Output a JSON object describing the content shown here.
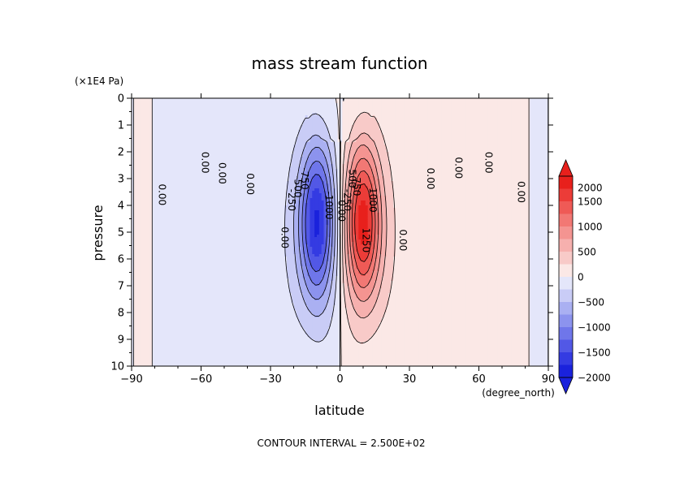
{
  "chart_data": {
    "type": "heatmap",
    "title": "mass stream function",
    "xlabel": "latitude",
    "ylabel": "pressure",
    "x_unit": "(degree_north)",
    "y_unit": "(×1E4 Pa)",
    "xlim": [
      -90,
      90
    ],
    "ylim": [
      0,
      10
    ],
    "y_reversed": true,
    "x_ticks": [
      "−90",
      "−60",
      "−30",
      "0",
      "30",
      "60",
      "90"
    ],
    "x_tick_values": [
      -90,
      -60,
      -30,
      0,
      30,
      60,
      90
    ],
    "y_ticks": [
      "0",
      "1",
      "2",
      "3",
      "4",
      "5",
      "6",
      "7",
      "8",
      "9",
      "10"
    ],
    "y_tick_values": [
      0,
      1,
      2,
      3,
      4,
      5,
      6,
      7,
      8,
      9,
      10
    ],
    "footer": "CONTOUR INTERVAL = 2.500E+02",
    "contour_interval": 250,
    "colorbar": {
      "labels": [
        "2000",
        "1500",
        "1000",
        "500",
        "0",
        "−500",
        "−1000",
        "−1500",
        "−2000"
      ],
      "label_values": [
        2000,
        1500,
        1000,
        500,
        0,
        -500,
        -1000,
        -1500,
        -2000
      ],
      "levels": [
        2000,
        1750,
        1500,
        1250,
        1000,
        750,
        500,
        250,
        0,
        -250,
        -500,
        -750,
        -1000,
        -1250,
        -1500,
        -1750,
        -2000
      ],
      "colors": [
        "#e8201c",
        "#ec3c38",
        "#ef5a56",
        "#f27874",
        "#f49491",
        "#f6b0ae",
        "#f8cac8",
        "#fbe8e6",
        "#e4e6fa",
        "#c9ccf6",
        "#aab0f2",
        "#8c93ee",
        "#6f76ea",
        "#5258e6",
        "#343be2",
        "#1a22dc"
      ]
    },
    "contour_labels": [
      {
        "text": "0.00",
        "lat": -77,
        "p": 3.6,
        "rot": 90
      },
      {
        "text": "0.00",
        "lat": -58.5,
        "p": 2.4,
        "rot": 90
      },
      {
        "text": "0.00",
        "lat": -51,
        "p": 2.8,
        "rot": 90
      },
      {
        "text": "0.00",
        "lat": -39,
        "p": 3.2,
        "rot": 90
      },
      {
        "text": "0.00",
        "lat": -24,
        "p": 5.2,
        "rot": 90
      },
      {
        "text": "-250",
        "lat": -21,
        "p": 3.8,
        "rot": 90
      },
      {
        "text": "-500",
        "lat": -18.5,
        "p": 3.3,
        "rot": 90
      },
      {
        "text": "-750",
        "lat": -15.5,
        "p": 3.0,
        "rot": 90
      },
      {
        "text": "-1000",
        "lat": -5,
        "p": 4.0,
        "rot": 90
      },
      {
        "text": "0.00",
        "lat": 0.5,
        "p": 4.2,
        "rot": 90
      },
      {
        "text": "-250",
        "lat": 3,
        "p": 3.8,
        "rot": 90
      },
      {
        "text": "750",
        "lat": 7,
        "p": 3.3,
        "rot": 90
      },
      {
        "text": "500",
        "lat": 5,
        "p": 3.0,
        "rot": 90
      },
      {
        "text": "1000",
        "lat": 14,
        "p": 3.8,
        "rot": 90
      },
      {
        "text": "1250",
        "lat": 11,
        "p": 5.3,
        "rot": 90
      },
      {
        "text": "0.00",
        "lat": 27,
        "p": 5.3,
        "rot": 90
      },
      {
        "text": "0.00",
        "lat": 39,
        "p": 3.0,
        "rot": 90
      },
      {
        "text": "0.00",
        "lat": 51,
        "p": 2.6,
        "rot": 90
      },
      {
        "text": "0.00",
        "lat": 64,
        "p": 2.4,
        "rot": 90
      },
      {
        "text": "0.00",
        "lat": 78,
        "p": 3.5,
        "rot": 90
      }
    ]
  }
}
